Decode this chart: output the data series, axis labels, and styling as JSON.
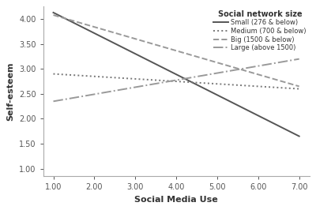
{
  "title": "",
  "xlabel": "Social Media Use",
  "ylabel": "Self-esteem",
  "xlim": [
    0.75,
    7.25
  ],
  "ylim": [
    0.85,
    4.25
  ],
  "xticks": [
    1.0,
    2.0,
    3.0,
    4.0,
    5.0,
    6.0,
    7.0
  ],
  "yticks": [
    1.0,
    1.5,
    2.0,
    2.5,
    3.0,
    3.5,
    4.0
  ],
  "xtick_labels": [
    "1.00",
    "2.00",
    "3.00",
    "4.00",
    "5.00",
    "6.00",
    "7.00"
  ],
  "ytick_labels": [
    "1.00",
    "1.50",
    "2.00",
    "2.50",
    "3.00",
    "3.50",
    "4.00"
  ],
  "legend_title": "Social network size",
  "lines": [
    {
      "label": "Small (276 & below)",
      "x": [
        1.0,
        7.0
      ],
      "y": [
        4.13,
        1.65
      ],
      "linestyle": "solid",
      "color": "#555555",
      "linewidth": 1.4
    },
    {
      "label": "Medium (700 & below)",
      "x": [
        1.0,
        7.0
      ],
      "y": [
        2.9,
        2.6
      ],
      "linestyle": "dotted",
      "color": "#777777",
      "linewidth": 1.4
    },
    {
      "label": "Big (1500 & below)",
      "x": [
        1.0,
        7.0
      ],
      "y": [
        4.08,
        2.65
      ],
      "linestyle": "dashed",
      "color": "#999999",
      "linewidth": 1.4
    },
    {
      "label": "Large (above 1500)",
      "x": [
        1.0,
        7.0
      ],
      "y": [
        2.35,
        3.2
      ],
      "linestyle": "dashdot",
      "color": "#999999",
      "linewidth": 1.4
    }
  ],
  "background_color": "#ffffff",
  "legend_fontsize": 6.0,
  "legend_title_fontsize": 7.0,
  "axis_label_fontsize": 8,
  "tick_fontsize": 7,
  "spine_color": "#aaaaaa"
}
